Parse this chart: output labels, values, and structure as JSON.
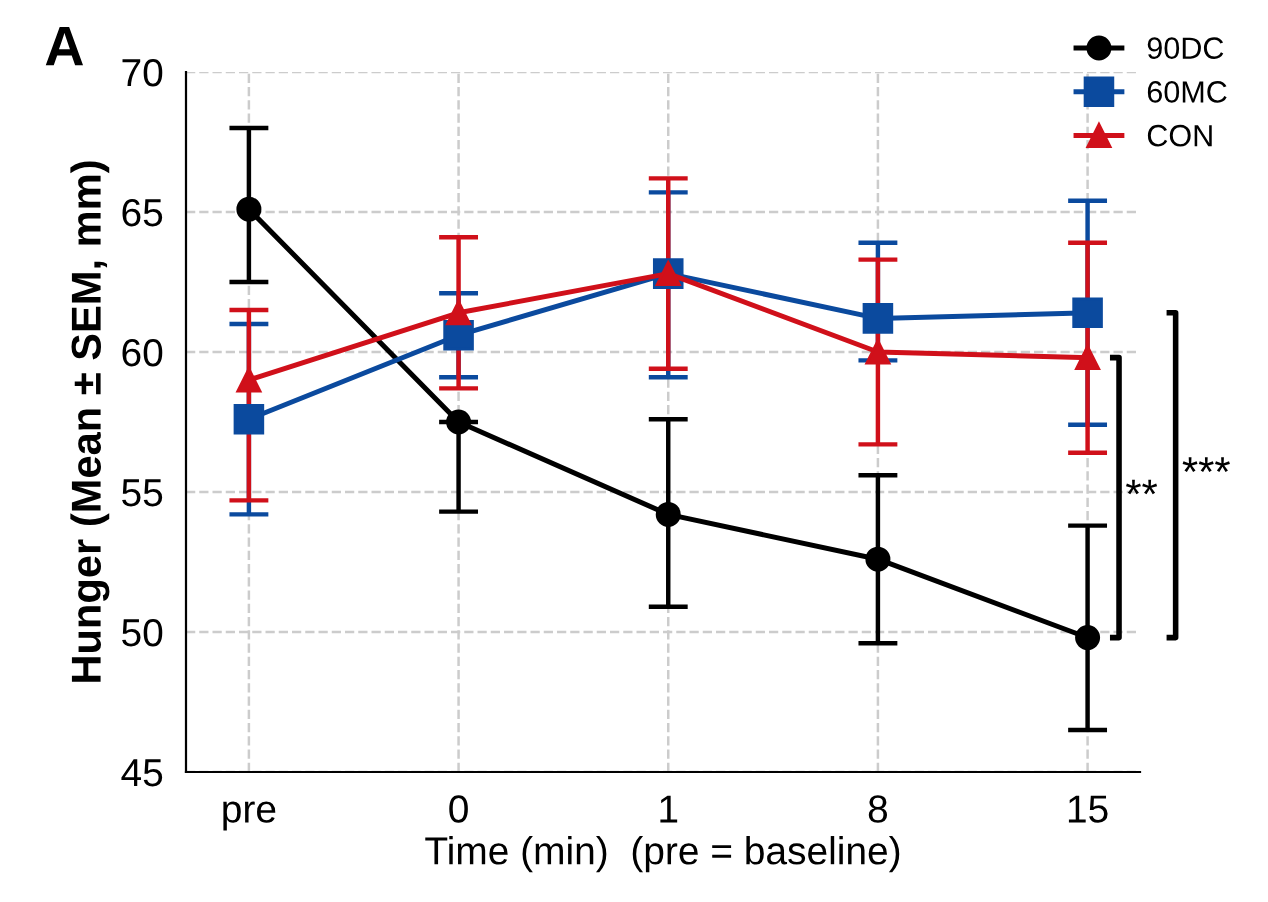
{
  "chart_data": {
    "type": "line",
    "xlabel": "Time (min)  (pre = baseline)",
    "ylabel": "Hunger (Mean ± SEM, mm)",
    "categories": [
      "pre",
      "0",
      "1",
      "8",
      "15"
    ],
    "series": [
      {
        "name": "90DC",
        "color": "#000000",
        "marker": "circle",
        "values": [
          65.1,
          57.5,
          54.2,
          52.6,
          49.8
        ],
        "errors": [
          [
            62.5,
            68.0
          ],
          [
            54.3,
            57.5
          ],
          [
            50.9,
            57.6
          ],
          [
            49.6,
            55.6
          ],
          [
            46.5,
            53.8
          ]
        ]
      },
      {
        "name": "60MC",
        "color": "#0b4a9e",
        "marker": "square",
        "values": [
          57.6,
          60.6,
          62.8,
          61.2,
          61.4
        ],
        "errors": [
          [
            54.2,
            61.0
          ],
          [
            59.1,
            62.1
          ],
          [
            59.1,
            65.7
          ],
          [
            59.7,
            63.9
          ],
          [
            57.4,
            65.4
          ]
        ]
      },
      {
        "name": "CON",
        "color": "#d0101a",
        "marker": "triangle",
        "values": [
          59.0,
          61.4,
          62.8,
          60.0,
          59.8
        ],
        "errors": [
          [
            54.7,
            61.5
          ],
          [
            58.7,
            64.1
          ],
          [
            59.4,
            66.2
          ],
          [
            56.7,
            63.3
          ],
          [
            56.4,
            63.9
          ]
        ]
      }
    ],
    "ylim": [
      45,
      70
    ],
    "yticks": [
      45,
      50,
      55,
      60,
      65,
      70
    ],
    "grid": true,
    "legend": "top right",
    "line_style": "solid",
    "annotations": [
      "A",
      "**",
      "***"
    ]
  }
}
